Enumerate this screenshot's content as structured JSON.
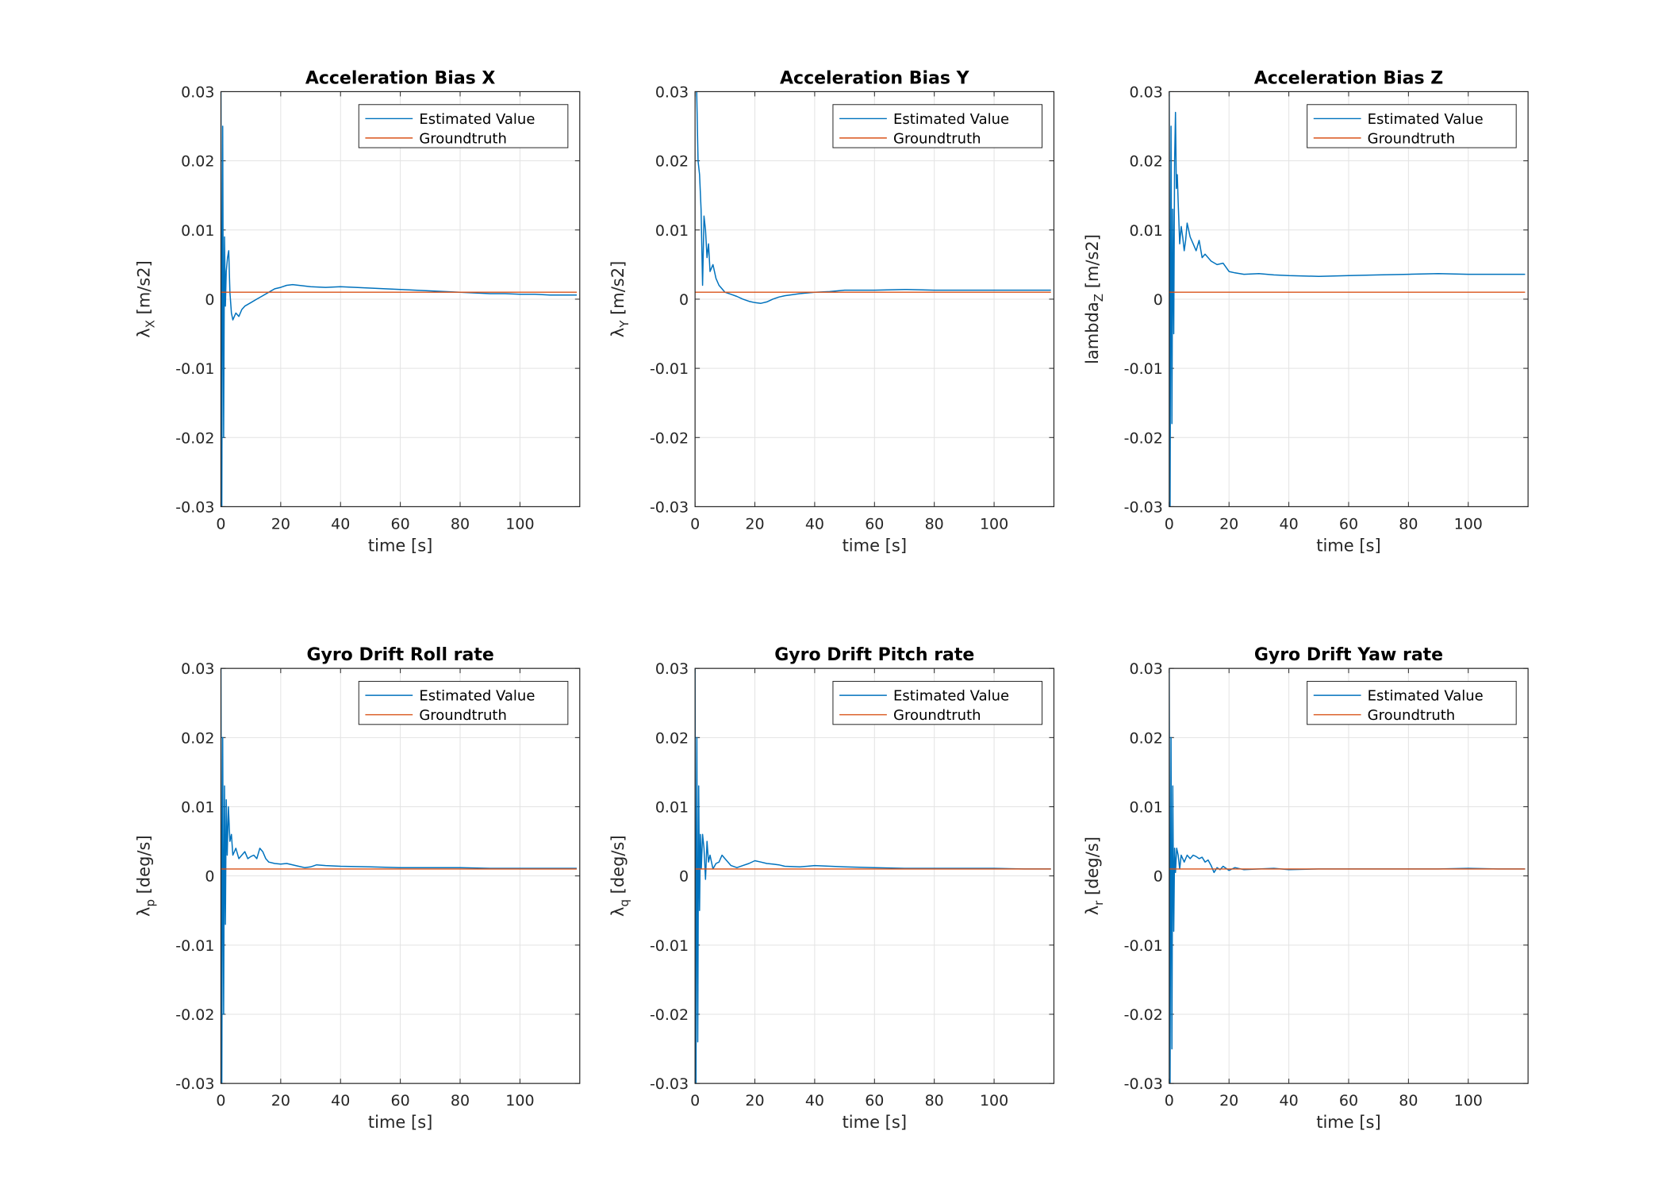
{
  "chart_data": [
    {
      "type": "line",
      "title": "Acceleration Bias X",
      "xlabel": "time [s]",
      "ylabel": {
        "text": "λ",
        "sub": "X",
        "unit": " [m/s2]"
      },
      "xlim": [
        0,
        120
      ],
      "ylim": [
        -0.03,
        0.03
      ],
      "xticks": [
        "0",
        "20",
        "40",
        "60",
        "80",
        "100"
      ],
      "yticks": [
        "-0.03",
        "-0.02",
        "-0.01",
        "0",
        "0.01",
        "0.02",
        "0.03"
      ],
      "grid": true,
      "legend_position": "top-right",
      "series": [
        {
          "name": "Estimated Value",
          "color": "#0072BD",
          "x": [
            0,
            0.3,
            0.6,
            0.9,
            1.2,
            1.5,
            1.8,
            2.2,
            2.6,
            3.0,
            3.5,
            4.0,
            5.0,
            6.0,
            7.0,
            8.0,
            10,
            12,
            14,
            16,
            18,
            20,
            22,
            24,
            26,
            28,
            30,
            35,
            40,
            45,
            50,
            55,
            60,
            65,
            70,
            75,
            80,
            85,
            90,
            95,
            100,
            105,
            110,
            115,
            119
          ],
          "y": [
            0.03,
            -0.03,
            0.025,
            -0.02,
            0.009,
            -0.001,
            0.004,
            0.006,
            0.007,
            0.001,
            -0.002,
            -0.003,
            -0.002,
            -0.0025,
            -0.0015,
            -0.001,
            -0.0005,
            0.0,
            0.0005,
            0.001,
            0.0015,
            0.0017,
            0.002,
            0.0021,
            0.002,
            0.0019,
            0.0018,
            0.0017,
            0.0018,
            0.0017,
            0.0016,
            0.0015,
            0.0014,
            0.0013,
            0.0012,
            0.0011,
            0.001,
            0.0009,
            0.0008,
            0.0008,
            0.0007,
            0.0007,
            0.0006,
            0.0006,
            0.0006
          ]
        },
        {
          "name": "Groundtruth",
          "color": "#D95319",
          "x": [
            0,
            119
          ],
          "y": [
            0.001,
            0.001
          ]
        }
      ]
    },
    {
      "type": "line",
      "title": "Acceleration Bias Y",
      "xlabel": "time [s]",
      "ylabel": {
        "text": "λ",
        "sub": "Y",
        "unit": " [m/s2]"
      },
      "xlim": [
        0,
        120
      ],
      "ylim": [
        -0.03,
        0.03
      ],
      "xticks": [
        "0",
        "20",
        "40",
        "60",
        "80",
        "100"
      ],
      "yticks": [
        "-0.03",
        "-0.02",
        "-0.01",
        "0",
        "0.01",
        "0.02",
        "0.03"
      ],
      "grid": true,
      "legend_position": "top-right",
      "series": [
        {
          "name": "Estimated Value",
          "color": "#0072BD",
          "x": [
            0,
            0.5,
            1.0,
            1.5,
            2.0,
            2.5,
            3.0,
            3.5,
            4.0,
            4.5,
            5.0,
            6.0,
            7.0,
            8.0,
            9.0,
            10,
            12,
            14,
            16,
            18,
            20,
            22,
            24,
            26,
            28,
            30,
            35,
            40,
            45,
            50,
            60,
            70,
            80,
            90,
            100,
            110,
            119
          ],
          "y": [
            0.03,
            0.031,
            0.02,
            0.018,
            0.013,
            0.002,
            0.012,
            0.01,
            0.006,
            0.008,
            0.004,
            0.005,
            0.003,
            0.002,
            0.0015,
            0.001,
            0.0007,
            0.0004,
            0.0,
            -0.0003,
            -0.0005,
            -0.0006,
            -0.0004,
            0.0,
            0.0003,
            0.0005,
            0.0008,
            0.001,
            0.0011,
            0.0013,
            0.0013,
            0.0014,
            0.0013,
            0.0013,
            0.0013,
            0.0013,
            0.0013
          ]
        },
        {
          "name": "Groundtruth",
          "color": "#D95319",
          "x": [
            0,
            119
          ],
          "y": [
            0.001,
            0.001
          ]
        }
      ]
    },
    {
      "type": "line",
      "title": "Acceleration Bias Z",
      "xlabel": "time [s]",
      "ylabel": {
        "text": "lambda",
        "sub": "Z",
        "unit": " [m/s2]"
      },
      "xlim": [
        0,
        120
      ],
      "ylim": [
        -0.03,
        0.03
      ],
      "xticks": [
        "0",
        "20",
        "40",
        "60",
        "80",
        "100"
      ],
      "yticks": [
        "-0.03",
        "-0.02",
        "-0.01",
        "0",
        "0.01",
        "0.02",
        "0.03"
      ],
      "grid": true,
      "legend_position": "top-right",
      "series": [
        {
          "name": "Estimated Value",
          "color": "#0072BD",
          "x": [
            0,
            0.3,
            0.6,
            0.9,
            1.2,
            1.5,
            1.8,
            2.1,
            2.4,
            2.7,
            3.0,
            3.5,
            4.0,
            4.5,
            5.0,
            5.5,
            6.0,
            7.0,
            8.0,
            9.0,
            10,
            11,
            12,
            14,
            16,
            18,
            20,
            22,
            25,
            30,
            35,
            40,
            50,
            60,
            70,
            80,
            90,
            100,
            110,
            119
          ],
          "y": [
            0.03,
            -0.03,
            0.025,
            -0.018,
            0.013,
            -0.005,
            0.02,
            0.027,
            0.016,
            0.018,
            0.014,
            0.008,
            0.0105,
            0.009,
            0.007,
            0.0085,
            0.011,
            0.009,
            0.008,
            0.007,
            0.0085,
            0.006,
            0.0065,
            0.0055,
            0.005,
            0.0052,
            0.004,
            0.0038,
            0.0036,
            0.0037,
            0.0035,
            0.0034,
            0.0033,
            0.0034,
            0.0035,
            0.0036,
            0.0037,
            0.0036,
            0.0036,
            0.0036
          ]
        },
        {
          "name": "Groundtruth",
          "color": "#D95319",
          "x": [
            0,
            119
          ],
          "y": [
            0.001,
            0.001
          ]
        }
      ]
    },
    {
      "type": "line",
      "title": "Gyro Drift Roll rate",
      "xlabel": "time [s]",
      "ylabel": {
        "text": "λ",
        "sub": "p",
        "unit": " [deg/s]"
      },
      "xlim": [
        0,
        120
      ],
      "ylim": [
        -0.03,
        0.03
      ],
      "xticks": [
        "0",
        "20",
        "40",
        "60",
        "80",
        "100"
      ],
      "yticks": [
        "-0.03",
        "-0.02",
        "-0.01",
        "0",
        "0.01",
        "0.02",
        "0.03"
      ],
      "grid": true,
      "legend_position": "top-right",
      "series": [
        {
          "name": "Estimated Value",
          "color": "#0072BD",
          "x": [
            0,
            0.3,
            0.6,
            0.9,
            1.2,
            1.5,
            1.8,
            2.1,
            2.5,
            3.0,
            3.5,
            4.0,
            5.0,
            6.0,
            7.0,
            8.0,
            9.0,
            10,
            11,
            12,
            13,
            14,
            15,
            16,
            18,
            20,
            22,
            25,
            28,
            30,
            32,
            35,
            40,
            50,
            60,
            70,
            80,
            90,
            100,
            110,
            119
          ],
          "y": [
            0.03,
            -0.03,
            0.02,
            -0.02,
            0.013,
            -0.007,
            0.011,
            0.003,
            0.01,
            0.005,
            0.006,
            0.003,
            0.004,
            0.0025,
            0.003,
            0.0035,
            0.0025,
            0.0028,
            0.003,
            0.0025,
            0.004,
            0.0035,
            0.0025,
            0.002,
            0.0018,
            0.0017,
            0.0018,
            0.0015,
            0.0012,
            0.0013,
            0.0016,
            0.0015,
            0.0014,
            0.0013,
            0.0012,
            0.0012,
            0.0012,
            0.0011,
            0.0011,
            0.0011,
            0.0011
          ]
        },
        {
          "name": "Groundtruth",
          "color": "#D95319",
          "x": [
            0,
            119
          ],
          "y": [
            0.001,
            0.001
          ]
        }
      ]
    },
    {
      "type": "line",
      "title": "Gyro Drift Pitch rate",
      "xlabel": "time [s]",
      "ylabel": {
        "text": "λ",
        "sub": "q",
        "unit": " [deg/s]"
      },
      "xlim": [
        0,
        120
      ],
      "ylim": [
        -0.03,
        0.03
      ],
      "xticks": [
        "0",
        "20",
        "40",
        "60",
        "80",
        "100"
      ],
      "yticks": [
        "-0.03",
        "-0.02",
        "-0.01",
        "0",
        "0.01",
        "0.02",
        "0.03"
      ],
      "grid": true,
      "legend_position": "top-right",
      "series": [
        {
          "name": "Estimated Value",
          "color": "#0072BD",
          "x": [
            0,
            0.3,
            0.6,
            0.9,
            1.2,
            1.5,
            1.8,
            2.1,
            2.5,
            3.0,
            3.5,
            4.0,
            4.5,
            5.0,
            6.0,
            7.0,
            8.0,
            9.0,
            10,
            12,
            14,
            16,
            18,
            20,
            22,
            24,
            26,
            28,
            30,
            35,
            40,
            50,
            60,
            70,
            80,
            90,
            100,
            110,
            119
          ],
          "y": [
            0.03,
            -0.03,
            0.02,
            -0.024,
            0.013,
            -0.005,
            0.006,
            0.001,
            0.006,
            0.004,
            -0.0005,
            0.005,
            0.002,
            0.003,
            0.001,
            0.0018,
            0.002,
            0.003,
            0.0025,
            0.0015,
            0.0012,
            0.0015,
            0.0018,
            0.0022,
            0.002,
            0.0018,
            0.0017,
            0.0016,
            0.0014,
            0.0013,
            0.0015,
            0.0013,
            0.0012,
            0.0011,
            0.0011,
            0.0011,
            0.0011,
            0.001,
            0.001
          ]
        },
        {
          "name": "Groundtruth",
          "color": "#D95319",
          "x": [
            0,
            119
          ],
          "y": [
            0.001,
            0.001
          ]
        }
      ]
    },
    {
      "type": "line",
      "title": "Gyro Drift Yaw rate",
      "xlabel": "time [s]",
      "ylabel": {
        "text": "λ",
        "sub": "r",
        "unit": " [deg/s]"
      },
      "xlim": [
        0,
        120
      ],
      "ylim": [
        -0.03,
        0.03
      ],
      "xticks": [
        "0",
        "20",
        "40",
        "60",
        "80",
        "100"
      ],
      "yticks": [
        "-0.03",
        "-0.02",
        "-0.01",
        "0",
        "0.01",
        "0.02",
        "0.03"
      ],
      "grid": true,
      "legend_position": "top-right",
      "series": [
        {
          "name": "Estimated Value",
          "color": "#0072BD",
          "x": [
            0,
            0.3,
            0.6,
            0.9,
            1.2,
            1.5,
            1.8,
            2.1,
            2.5,
            3.0,
            3.5,
            4.0,
            5.0,
            6.0,
            7.0,
            8.0,
            9.0,
            10,
            11,
            12,
            13,
            14,
            15,
            16,
            17,
            18,
            20,
            22,
            25,
            30,
            35,
            40,
            50,
            60,
            70,
            80,
            90,
            100,
            110,
            119
          ],
          "y": [
            0.03,
            -0.03,
            0.02,
            -0.025,
            0.013,
            -0.008,
            0.004,
            0.0005,
            0.004,
            0.003,
            0.001,
            0.003,
            0.002,
            0.003,
            0.0025,
            0.003,
            0.0028,
            0.0025,
            0.0027,
            0.002,
            0.0023,
            0.0015,
            0.0005,
            0.0012,
            0.0009,
            0.0014,
            0.0008,
            0.0012,
            0.0009,
            0.001,
            0.0011,
            0.0009,
            0.001,
            0.001,
            0.001,
            0.001,
            0.001,
            0.0011,
            0.001,
            0.001
          ]
        },
        {
          "name": "Groundtruth",
          "color": "#D95319",
          "x": [
            0,
            119
          ],
          "y": [
            0.001,
            0.001
          ]
        }
      ]
    }
  ]
}
